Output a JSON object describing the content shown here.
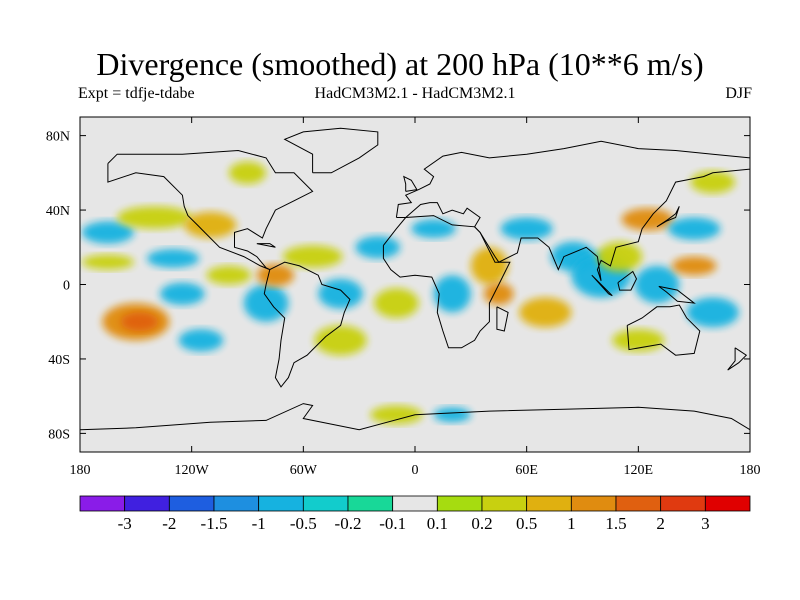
{
  "title": "Divergence (smoothed) at 200 hPa (10**6 m/s)",
  "experiment": "Expt = tdfje-tdabe",
  "models": "HadCM3M2.1 - HadCM3M2.1",
  "season": "DJF",
  "map": {
    "lon_range": [
      -180,
      180
    ],
    "lat_range": [
      -90,
      90
    ],
    "background_color": "#e6e6e6",
    "x_ticks": [
      {
        "value": -180,
        "label": "180"
      },
      {
        "value": -120,
        "label": "120W"
      },
      {
        "value": -60,
        "label": "60W"
      },
      {
        "value": 0,
        "label": "0"
      },
      {
        "value": 60,
        "label": "60E"
      },
      {
        "value": 120,
        "label": "120E"
      },
      {
        "value": 180,
        "label": "180"
      }
    ],
    "y_ticks": [
      {
        "value": 80,
        "label": "80N"
      },
      {
        "value": 40,
        "label": "40N"
      },
      {
        "value": 0,
        "label": "0"
      },
      {
        "value": -40,
        "label": "40S"
      },
      {
        "value": -80,
        "label": "80S"
      }
    ]
  },
  "colorbar": {
    "colors": [
      "#8a1ce8",
      "#4020e0",
      "#1e5ee0",
      "#1e8fe0",
      "#16b2e0",
      "#12cccc",
      "#18d898",
      "#e6e6e6",
      "#a6dc10",
      "#c8d010",
      "#e0b010",
      "#e08c10",
      "#e06010",
      "#e03a10",
      "#e00000"
    ],
    "labels": [
      "-3",
      "-2",
      "-1.5",
      "-1",
      "-0.5",
      "-0.2",
      "-0.1",
      "0.1",
      "0.2",
      "0.5",
      "1",
      "1.5",
      "2",
      "3"
    ]
  },
  "field_blobs": [
    {
      "lon": -165,
      "lat": 28,
      "rlon": 14,
      "rlat": 6,
      "color": "#16b2e0"
    },
    {
      "lon": -165,
      "lat": 12,
      "rlon": 14,
      "rlat": 4,
      "color": "#c8d010"
    },
    {
      "lon": -140,
      "lat": 36,
      "rlon": 20,
      "rlat": 6,
      "color": "#c8d010"
    },
    {
      "lon": -130,
      "lat": 14,
      "rlon": 14,
      "rlat": 5,
      "color": "#16b2e0"
    },
    {
      "lon": -110,
      "lat": 32,
      "rlon": 14,
      "rlat": 7,
      "color": "#e0b010"
    },
    {
      "lon": -150,
      "lat": -20,
      "rlon": 18,
      "rlat": 10,
      "color": "#e08c10"
    },
    {
      "lon": -148,
      "lat": -20,
      "rlon": 10,
      "rlat": 5,
      "color": "#e06010"
    },
    {
      "lon": -125,
      "lat": -5,
      "rlon": 12,
      "rlat": 6,
      "color": "#16b2e0"
    },
    {
      "lon": -100,
      "lat": 5,
      "rlon": 12,
      "rlat": 5,
      "color": "#c8d010"
    },
    {
      "lon": -115,
      "lat": -30,
      "rlon": 12,
      "rlat": 6,
      "color": "#16b2e0"
    },
    {
      "lon": -80,
      "lat": -10,
      "rlon": 12,
      "rlat": 10,
      "color": "#16b2e0"
    },
    {
      "lon": -75,
      "lat": 5,
      "rlon": 10,
      "rlat": 6,
      "color": "#e08c10"
    },
    {
      "lon": -55,
      "lat": 15,
      "rlon": 16,
      "rlat": 6,
      "color": "#c8d010"
    },
    {
      "lon": -40,
      "lat": -5,
      "rlon": 12,
      "rlat": 8,
      "color": "#16b2e0"
    },
    {
      "lon": -40,
      "lat": -30,
      "rlon": 14,
      "rlat": 8,
      "color": "#c8d010"
    },
    {
      "lon": -20,
      "lat": 20,
      "rlon": 12,
      "rlat": 6,
      "color": "#16b2e0"
    },
    {
      "lon": -10,
      "lat": -10,
      "rlon": 12,
      "rlat": 8,
      "color": "#c8d010"
    },
    {
      "lon": 10,
      "lat": 30,
      "rlon": 12,
      "rlat": 5,
      "color": "#16b2e0"
    },
    {
      "lon": 20,
      "lat": -5,
      "rlon": 10,
      "rlat": 10,
      "color": "#16b2e0"
    },
    {
      "lon": 40,
      "lat": 10,
      "rlon": 10,
      "rlat": 10,
      "color": "#e0b010"
    },
    {
      "lon": 45,
      "lat": -5,
      "rlon": 8,
      "rlat": 6,
      "color": "#e08c10"
    },
    {
      "lon": 60,
      "lat": 30,
      "rlon": 14,
      "rlat": 6,
      "color": "#16b2e0"
    },
    {
      "lon": 70,
      "lat": -15,
      "rlon": 14,
      "rlat": 8,
      "color": "#e0b010"
    },
    {
      "lon": 85,
      "lat": 15,
      "rlon": 12,
      "rlat": 8,
      "color": "#16b2e0"
    },
    {
      "lon": 100,
      "lat": 5,
      "rlon": 16,
      "rlat": 12,
      "color": "#16b2e0"
    },
    {
      "lon": 110,
      "lat": 15,
      "rlon": 12,
      "rlat": 8,
      "color": "#c8d010"
    },
    {
      "lon": 125,
      "lat": 35,
      "rlon": 14,
      "rlat": 6,
      "color": "#e08c10"
    },
    {
      "lon": 130,
      "lat": 0,
      "rlon": 12,
      "rlat": 10,
      "color": "#16b2e0"
    },
    {
      "lon": 150,
      "lat": 10,
      "rlon": 12,
      "rlat": 5,
      "color": "#e08c10"
    },
    {
      "lon": 150,
      "lat": 30,
      "rlon": 14,
      "rlat": 6,
      "color": "#16b2e0"
    },
    {
      "lon": 160,
      "lat": -15,
      "rlon": 14,
      "rlat": 8,
      "color": "#16b2e0"
    },
    {
      "lon": 120,
      "lat": -30,
      "rlon": 14,
      "rlat": 6,
      "color": "#c8d010"
    },
    {
      "lon": 160,
      "lat": 55,
      "rlon": 12,
      "rlat": 6,
      "color": "#c8d010"
    },
    {
      "lon": -90,
      "lat": 60,
      "rlon": 10,
      "rlat": 6,
      "color": "#c8d010"
    },
    {
      "lon": -10,
      "lat": -70,
      "rlon": 14,
      "rlat": 5,
      "color": "#c8d010"
    },
    {
      "lon": 20,
      "lat": -70,
      "rlon": 10,
      "rlat": 4,
      "color": "#16b2e0"
    }
  ],
  "coastlines": [
    {
      "name": "north-america",
      "points": [
        [
          -165,
          65
        ],
        [
          -160,
          70
        ],
        [
          -140,
          70
        ],
        [
          -125,
          70
        ],
        [
          -95,
          72
        ],
        [
          -80,
          68
        ],
        [
          -75,
          60
        ],
        [
          -65,
          60
        ],
        [
          -55,
          50
        ],
        [
          -65,
          45
        ],
        [
          -75,
          40
        ],
        [
          -80,
          30
        ],
        [
          -82,
          25
        ],
        [
          -90,
          30
        ],
        [
          -97,
          28
        ],
        [
          -97,
          20
        ],
        [
          -90,
          18
        ],
        [
          -85,
          15
        ],
        [
          -80,
          9
        ],
        [
          -78,
          8
        ],
        [
          -83,
          10
        ],
        [
          -92,
          15
        ],
        [
          -105,
          20
        ],
        [
          -110,
          25
        ],
        [
          -117,
          32
        ],
        [
          -122,
          37
        ],
        [
          -124,
          42
        ],
        [
          -125,
          48
        ],
        [
          -135,
          58
        ],
        [
          -150,
          60
        ],
        [
          -165,
          55
        ],
        [
          -165,
          65
        ]
      ]
    },
    {
      "name": "greenland",
      "points": [
        [
          -55,
          60
        ],
        [
          -45,
          60
        ],
        [
          -30,
          68
        ],
        [
          -20,
          75
        ],
        [
          -20,
          82
        ],
        [
          -40,
          84
        ],
        [
          -60,
          82
        ],
        [
          -70,
          78
        ],
        [
          -55,
          70
        ],
        [
          -55,
          60
        ]
      ]
    },
    {
      "name": "south-america",
      "points": [
        [
          -78,
          8
        ],
        [
          -70,
          12
        ],
        [
          -62,
          10
        ],
        [
          -52,
          5
        ],
        [
          -50,
          0
        ],
        [
          -40,
          -3
        ],
        [
          -35,
          -8
        ],
        [
          -38,
          -15
        ],
        [
          -40,
          -22
        ],
        [
          -48,
          -28
        ],
        [
          -55,
          -35
        ],
        [
          -58,
          -38
        ],
        [
          -65,
          -42
        ],
        [
          -68,
          -50
        ],
        [
          -72,
          -55
        ],
        [
          -75,
          -50
        ],
        [
          -73,
          -40
        ],
        [
          -72,
          -30
        ],
        [
          -70,
          -18
        ],
        [
          -76,
          -12
        ],
        [
          -81,
          -5
        ],
        [
          -80,
          0
        ],
        [
          -78,
          8
        ]
      ]
    },
    {
      "name": "eurasia",
      "points": [
        [
          -10,
          36
        ],
        [
          -9,
          43
        ],
        [
          -2,
          44
        ],
        [
          -5,
          48
        ],
        [
          2,
          51
        ],
        [
          8,
          54
        ],
        [
          10,
          58
        ],
        [
          5,
          62
        ],
        [
          15,
          69
        ],
        [
          25,
          71
        ],
        [
          40,
          68
        ],
        [
          60,
          70
        ],
        [
          80,
          73
        ],
        [
          100,
          77
        ],
        [
          120,
          73
        ],
        [
          140,
          72
        ],
        [
          160,
          70
        ],
        [
          180,
          68
        ],
        [
          180,
          62
        ],
        [
          160,
          60
        ],
        [
          155,
          58
        ],
        [
          140,
          55
        ],
        [
          135,
          45
        ],
        [
          128,
          38
        ],
        [
          122,
          30
        ],
        [
          120,
          23
        ],
        [
          108,
          20
        ],
        [
          105,
          10
        ],
        [
          100,
          13
        ],
        [
          98,
          8
        ],
        [
          100,
          2
        ],
        [
          98,
          15
        ],
        [
          92,
          20
        ],
        [
          80,
          15
        ],
        [
          77,
          8
        ],
        [
          72,
          20
        ],
        [
          66,
          25
        ],
        [
          57,
          25
        ],
        [
          55,
          17
        ],
        [
          45,
          12
        ],
        [
          43,
          15
        ],
        [
          35,
          28
        ],
        [
          32,
          31
        ],
        [
          35,
          36
        ],
        [
          28,
          41
        ],
        [
          26,
          38
        ],
        [
          20,
          40
        ],
        [
          15,
          38
        ],
        [
          12,
          44
        ],
        [
          8,
          44
        ],
        [
          3,
          43
        ],
        [
          -5,
          36
        ],
        [
          -10,
          36
        ]
      ]
    },
    {
      "name": "africa",
      "points": [
        [
          -17,
          21
        ],
        [
          -10,
          30
        ],
        [
          -5,
          36
        ],
        [
          10,
          37
        ],
        [
          20,
          32
        ],
        [
          32,
          31
        ],
        [
          35,
          28
        ],
        [
          43,
          12
        ],
        [
          51,
          12
        ],
        [
          45,
          0
        ],
        [
          40,
          -10
        ],
        [
          40,
          -20
        ],
        [
          35,
          -25
        ],
        [
          32,
          -30
        ],
        [
          25,
          -34
        ],
        [
          18,
          -34
        ],
        [
          15,
          -25
        ],
        [
          12,
          -15
        ],
        [
          13,
          -5
        ],
        [
          9,
          4
        ],
        [
          0,
          5
        ],
        [
          -8,
          4
        ],
        [
          -13,
          8
        ],
        [
          -17,
          14
        ],
        [
          -17,
          21
        ]
      ]
    },
    {
      "name": "madagascar",
      "points": [
        [
          44,
          -12
        ],
        [
          50,
          -15
        ],
        [
          48,
          -25
        ],
        [
          44,
          -24
        ],
        [
          44,
          -12
        ]
      ]
    },
    {
      "name": "australia",
      "points": [
        [
          114,
          -22
        ],
        [
          122,
          -18
        ],
        [
          130,
          -12
        ],
        [
          137,
          -12
        ],
        [
          142,
          -11
        ],
        [
          146,
          -18
        ],
        [
          153,
          -25
        ],
        [
          150,
          -37
        ],
        [
          140,
          -38
        ],
        [
          132,
          -32
        ],
        [
          115,
          -35
        ],
        [
          114,
          -22
        ]
      ]
    },
    {
      "name": "japan",
      "points": [
        [
          130,
          31
        ],
        [
          135,
          34
        ],
        [
          140,
          36
        ],
        [
          142,
          42
        ],
        [
          140,
          38
        ],
        [
          136,
          35
        ],
        [
          130,
          31
        ]
      ]
    },
    {
      "name": "borneo",
      "points": [
        [
          109,
          1
        ],
        [
          117,
          7
        ],
        [
          119,
          3
        ],
        [
          116,
          -3
        ],
        [
          110,
          -3
        ],
        [
          109,
          1
        ]
      ]
    },
    {
      "name": "sumatra",
      "points": [
        [
          95,
          5
        ],
        [
          104,
          -5
        ],
        [
          106,
          -6
        ],
        [
          100,
          0
        ],
        [
          95,
          5
        ]
      ]
    },
    {
      "name": "new-guinea",
      "points": [
        [
          131,
          -1
        ],
        [
          141,
          -3
        ],
        [
          150,
          -10
        ],
        [
          141,
          -9
        ],
        [
          135,
          -4
        ],
        [
          131,
          -1
        ]
      ]
    },
    {
      "name": "new-zealand",
      "points": [
        [
          172,
          -34
        ],
        [
          178,
          -38
        ],
        [
          174,
          -42
        ],
        [
          168,
          -46
        ],
        [
          172,
          -41
        ],
        [
          172,
          -34
        ]
      ]
    },
    {
      "name": "antarctica",
      "points": [
        [
          -180,
          -78
        ],
        [
          -150,
          -77
        ],
        [
          -110,
          -74
        ],
        [
          -80,
          -73
        ],
        [
          -60,
          -64
        ],
        [
          -55,
          -65
        ],
        [
          -60,
          -72
        ],
        [
          -30,
          -78
        ],
        [
          0,
          -70
        ],
        [
          40,
          -68
        ],
        [
          80,
          -67
        ],
        [
          120,
          -66
        ],
        [
          150,
          -68
        ],
        [
          170,
          -72
        ],
        [
          180,
          -78
        ]
      ]
    },
    {
      "name": "uk",
      "points": [
        [
          -5,
          50
        ],
        [
          1,
          51
        ],
        [
          -2,
          56
        ],
        [
          -6,
          58
        ],
        [
          -5,
          54
        ],
        [
          -5,
          50
        ]
      ]
    },
    {
      "name": "cuba",
      "points": [
        [
          -85,
          22
        ],
        [
          -75,
          20
        ],
        [
          -78,
          22
        ],
        [
          -85,
          22
        ]
      ]
    }
  ]
}
